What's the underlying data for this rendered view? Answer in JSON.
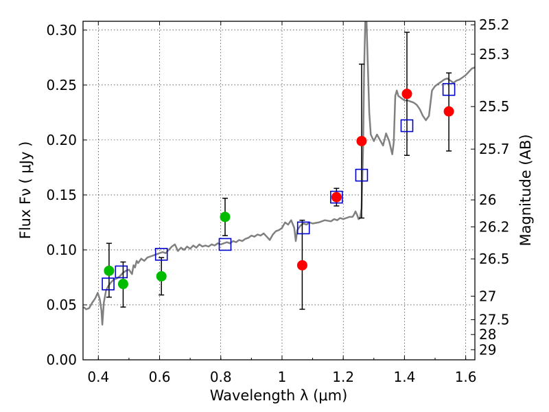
{
  "chart_data": {
    "type": "scatter",
    "title": "",
    "xlabel": "Wavelength  λ (μm)",
    "ylabel": "Flux  Fν  ( μJy )",
    "ylabel_right": "Magnitude (AB)",
    "xlim": [
      0.35,
      1.63
    ],
    "ylim": [
      0.0,
      0.308
    ],
    "grid": true,
    "x_ticks": [
      0.4,
      0.6,
      0.8,
      1.0,
      1.2,
      1.4,
      1.6
    ],
    "x_tick_labels": [
      "0.4",
      "0.6",
      "0.8",
      "1",
      "1.2",
      "1.4",
      "1.6"
    ],
    "y_ticks": [
      0.0,
      0.05,
      0.1,
      0.15,
      0.2,
      0.25,
      0.3
    ],
    "y_tick_labels": [
      "0.00",
      "0.05",
      "0.10",
      "0.15",
      "0.20",
      "0.25",
      "0.30"
    ],
    "right_ticks": [
      {
        "label": "25.2",
        "flux": 0.3048
      },
      {
        "label": "25.3",
        "flux": 0.278
      },
      {
        "label": "25.5",
        "flux": 0.2304
      },
      {
        "label": "25.7",
        "flux": 0.1917
      },
      {
        "label": "26",
        "flux": 0.1455
      },
      {
        "label": "26.2",
        "flux": 0.121
      },
      {
        "label": "26.5",
        "flux": 0.0918
      },
      {
        "label": "27",
        "flux": 0.0579
      },
      {
        "label": "27.5",
        "flux": 0.0365
      },
      {
        "label": "28",
        "flux": 0.023
      },
      {
        "label": "29",
        "flux": 0.0092
      }
    ],
    "model_spectrum": {
      "name": "model SED",
      "color": "#808080",
      "points": [
        [
          0.352,
          0.048
        ],
        [
          0.36,
          0.046
        ],
        [
          0.37,
          0.047
        ],
        [
          0.38,
          0.052
        ],
        [
          0.39,
          0.056
        ],
        [
          0.398,
          0.061
        ],
        [
          0.405,
          0.055
        ],
        [
          0.41,
          0.045
        ],
        [
          0.413,
          0.032
        ],
        [
          0.418,
          0.052
        ],
        [
          0.425,
          0.063
        ],
        [
          0.432,
          0.067
        ],
        [
          0.44,
          0.07
        ],
        [
          0.45,
          0.073
        ],
        [
          0.46,
          0.074
        ],
        [
          0.47,
          0.076
        ],
        [
          0.48,
          0.079
        ],
        [
          0.49,
          0.081
        ],
        [
          0.5,
          0.082
        ],
        [
          0.51,
          0.078
        ],
        [
          0.515,
          0.086
        ],
        [
          0.52,
          0.084
        ],
        [
          0.525,
          0.09
        ],
        [
          0.53,
          0.088
        ],
        [
          0.54,
          0.092
        ],
        [
          0.55,
          0.09
        ],
        [
          0.56,
          0.093
        ],
        [
          0.57,
          0.094
        ],
        [
          0.58,
          0.095
        ],
        [
          0.59,
          0.096
        ],
        [
          0.6,
          0.097
        ],
        [
          0.61,
          0.098
        ],
        [
          0.62,
          0.097
        ],
        [
          0.63,
          0.1
        ],
        [
          0.64,
          0.103
        ],
        [
          0.65,
          0.105
        ],
        [
          0.655,
          0.102
        ],
        [
          0.66,
          0.099
        ],
        [
          0.67,
          0.102
        ],
        [
          0.68,
          0.1
        ],
        [
          0.69,
          0.103
        ],
        [
          0.7,
          0.101
        ],
        [
          0.71,
          0.104
        ],
        [
          0.72,
          0.102
        ],
        [
          0.73,
          0.105
        ],
        [
          0.74,
          0.103
        ],
        [
          0.75,
          0.104
        ],
        [
          0.76,
          0.103
        ],
        [
          0.77,
          0.105
        ],
        [
          0.78,
          0.104
        ],
        [
          0.79,
          0.106
        ],
        [
          0.8,
          0.105
        ],
        [
          0.81,
          0.106
        ],
        [
          0.82,
          0.107
        ],
        [
          0.83,
          0.106
        ],
        [
          0.84,
          0.108
        ],
        [
          0.85,
          0.107
        ],
        [
          0.86,
          0.109
        ],
        [
          0.87,
          0.108
        ],
        [
          0.88,
          0.11
        ],
        [
          0.89,
          0.111
        ],
        [
          0.9,
          0.113
        ],
        [
          0.91,
          0.112
        ],
        [
          0.92,
          0.114
        ],
        [
          0.93,
          0.113
        ],
        [
          0.94,
          0.115
        ],
        [
          0.95,
          0.112
        ],
        [
          0.96,
          0.109
        ],
        [
          0.97,
          0.114
        ],
        [
          0.98,
          0.117
        ],
        [
          0.99,
          0.118
        ],
        [
          1.0,
          0.12
        ],
        [
          1.01,
          0.125
        ],
        [
          1.02,
          0.123
        ],
        [
          1.03,
          0.127
        ],
        [
          1.04,
          0.12
        ],
        [
          1.045,
          0.108
        ],
        [
          1.05,
          0.118
        ],
        [
          1.06,
          0.122
        ],
        [
          1.07,
          0.124
        ],
        [
          1.08,
          0.123
        ],
        [
          1.09,
          0.125
        ],
        [
          1.1,
          0.124
        ],
        [
          1.12,
          0.125
        ],
        [
          1.14,
          0.127
        ],
        [
          1.16,
          0.126
        ],
        [
          1.17,
          0.128
        ],
        [
          1.18,
          0.127
        ],
        [
          1.19,
          0.129
        ],
        [
          1.2,
          0.128
        ],
        [
          1.21,
          0.129
        ],
        [
          1.22,
          0.13
        ],
        [
          1.23,
          0.13
        ],
        [
          1.235,
          0.132
        ],
        [
          1.24,
          0.135
        ],
        [
          1.245,
          0.132
        ],
        [
          1.25,
          0.128
        ],
        [
          1.255,
          0.129
        ],
        [
          1.26,
          0.138
        ],
        [
          1.265,
          0.195
        ],
        [
          1.268,
          0.262
        ],
        [
          1.272,
          0.308
        ],
        [
          1.276,
          0.308
        ],
        [
          1.28,
          0.27
        ],
        [
          1.285,
          0.225
        ],
        [
          1.29,
          0.205
        ],
        [
          1.3,
          0.199
        ],
        [
          1.31,
          0.205
        ],
        [
          1.32,
          0.2
        ],
        [
          1.33,
          0.195
        ],
        [
          1.34,
          0.206
        ],
        [
          1.35,
          0.199
        ],
        [
          1.36,
          0.187
        ],
        [
          1.365,
          0.198
        ],
        [
          1.37,
          0.24
        ],
        [
          1.375,
          0.245
        ],
        [
          1.38,
          0.24
        ],
        [
          1.39,
          0.238
        ],
        [
          1.4,
          0.236
        ],
        [
          1.41,
          0.236
        ],
        [
          1.42,
          0.235
        ],
        [
          1.43,
          0.234
        ],
        [
          1.44,
          0.232
        ],
        [
          1.45,
          0.228
        ],
        [
          1.46,
          0.222
        ],
        [
          1.47,
          0.218
        ],
        [
          1.48,
          0.222
        ],
        [
          1.49,
          0.245
        ],
        [
          1.5,
          0.249
        ],
        [
          1.51,
          0.251
        ],
        [
          1.52,
          0.253
        ],
        [
          1.53,
          0.255
        ],
        [
          1.54,
          0.256
        ],
        [
          1.55,
          0.254
        ],
        [
          1.56,
          0.252
        ],
        [
          1.57,
          0.254
        ],
        [
          1.58,
          0.255
        ],
        [
          1.59,
          0.257
        ],
        [
          1.6,
          0.259
        ],
        [
          1.61,
          0.262
        ],
        [
          1.62,
          0.265
        ],
        [
          1.63,
          0.266
        ]
      ]
    },
    "series": [
      {
        "name": "green points",
        "marker": "circle",
        "color": "#00bb00",
        "points": [
          {
            "x": 0.435,
            "y": 0.081
          },
          {
            "x": 0.481,
            "y": 0.069
          },
          {
            "x": 0.606,
            "y": 0.076
          },
          {
            "x": 0.814,
            "y": 0.13
          }
        ]
      },
      {
        "name": "red points",
        "marker": "circle",
        "color": "#ff0000",
        "points": [
          {
            "x": 1.066,
            "y": 0.086
          },
          {
            "x": 1.178,
            "y": 0.148
          },
          {
            "x": 1.26,
            "y": 0.199
          },
          {
            "x": 1.408,
            "y": 0.242
          },
          {
            "x": 1.545,
            "y": 0.226
          }
        ]
      },
      {
        "name": "model band fluxes",
        "marker": "square",
        "color": "#0000cc",
        "points": [
          {
            "x": 0.432,
            "y": 0.069
          },
          {
            "x": 0.475,
            "y": 0.08
          },
          {
            "x": 0.606,
            "y": 0.096
          },
          {
            "x": 0.814,
            "y": 0.105
          },
          {
            "x": 1.07,
            "y": 0.12
          },
          {
            "x": 1.178,
            "y": 0.148
          },
          {
            "x": 1.26,
            "y": 0.168
          },
          {
            "x": 1.408,
            "y": 0.213
          },
          {
            "x": 1.545,
            "y": 0.246
          }
        ]
      }
    ],
    "error_bars": [
      {
        "x": 0.435,
        "low": 0.057,
        "high": 0.106
      },
      {
        "x": 0.481,
        "low": 0.048,
        "high": 0.089
      },
      {
        "x": 0.606,
        "low": 0.059,
        "high": 0.093
      },
      {
        "x": 0.814,
        "low": 0.113,
        "high": 0.147
      },
      {
        "x": 1.066,
        "low": 0.046,
        "high": 0.127
      },
      {
        "x": 1.178,
        "low": 0.14,
        "high": 0.156
      },
      {
        "x": 1.26,
        "low": 0.129,
        "high": 0.269
      },
      {
        "x": 1.408,
        "low": 0.186,
        "high": 0.298
      },
      {
        "x": 1.545,
        "low": 0.19,
        "high": 0.261
      }
    ]
  }
}
